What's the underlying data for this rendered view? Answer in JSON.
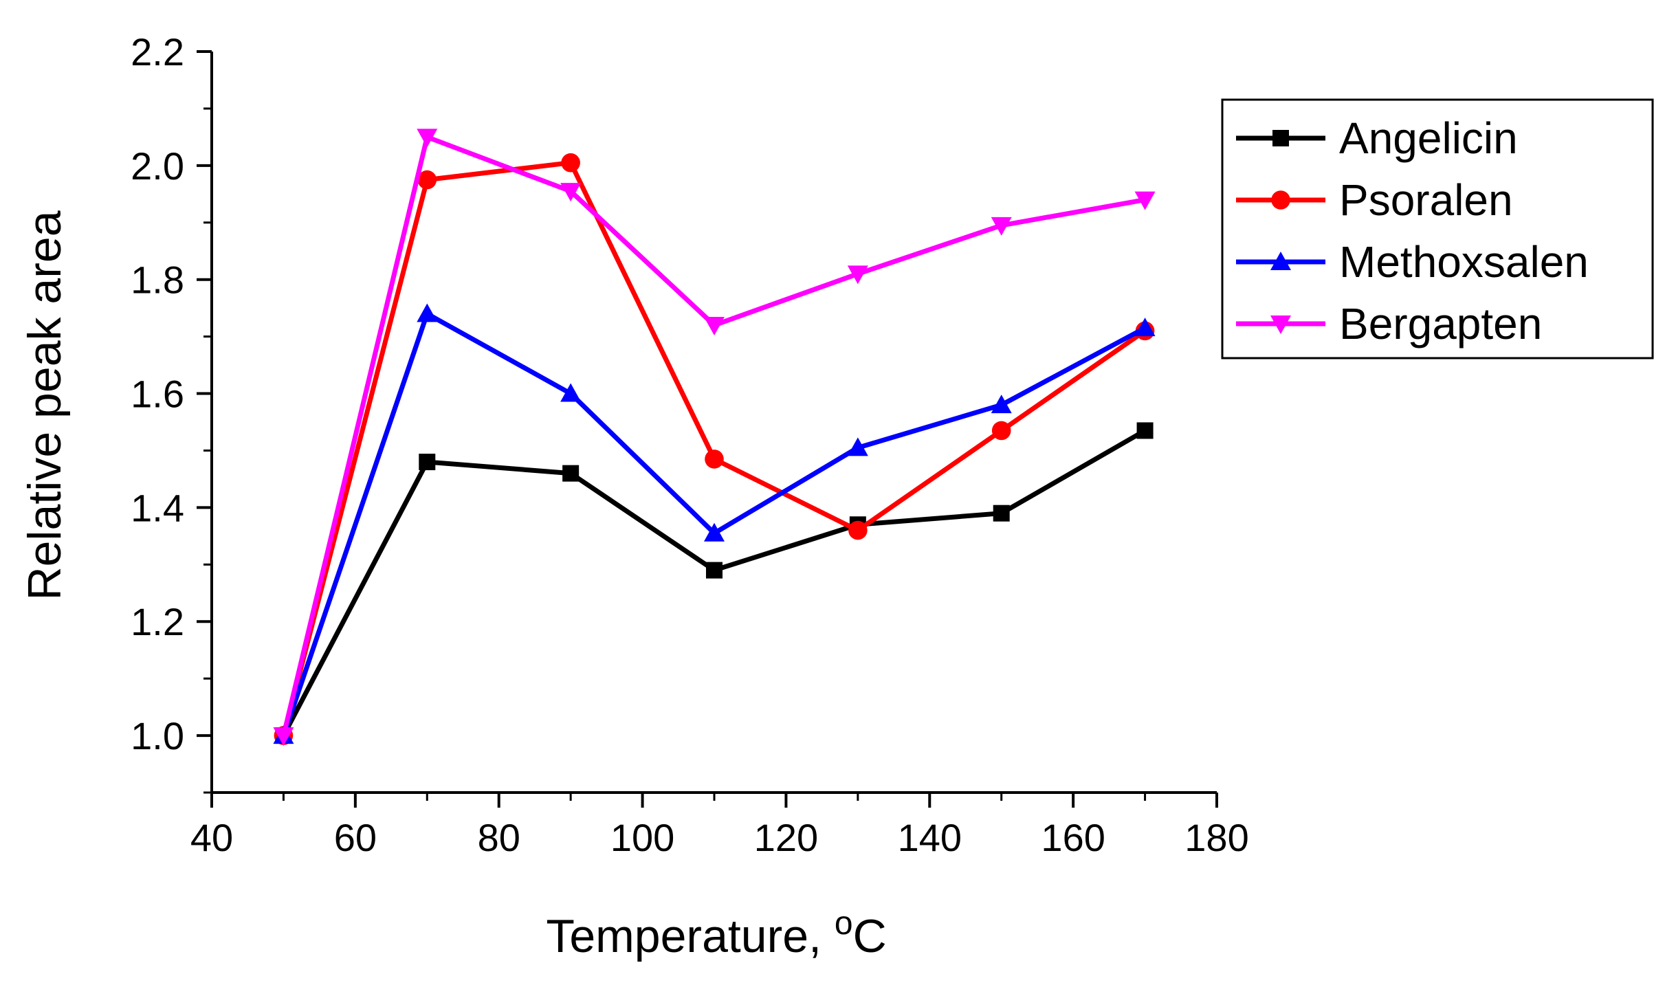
{
  "chart_data": {
    "type": "line",
    "title": "",
    "xlabel": "Temperature, ",
    "xlabel_superscript": "o",
    "xlabel_unit": "C",
    "ylabel": "Relative peak area",
    "xlim": [
      40,
      180
    ],
    "ylim": [
      0.9,
      2.2
    ],
    "x_ticks": [
      40,
      60,
      80,
      100,
      120,
      140,
      160,
      180
    ],
    "x_tick_labels": [
      "40",
      "60",
      "80",
      "100",
      "120",
      "140",
      "160",
      "180"
    ],
    "y_ticks": [
      1.0,
      1.2,
      1.4,
      1.6,
      1.8,
      2.0,
      2.2
    ],
    "y_tick_labels": [
      "1.0",
      "1.2",
      "1.4",
      "1.6",
      "1.8",
      "2.0",
      "2.2"
    ],
    "grid": false,
    "legend_position": "top-right, outside plot",
    "x": [
      50,
      70,
      90,
      110,
      130,
      150,
      170
    ],
    "series": [
      {
        "name": "Angelicin",
        "color": "#000000",
        "marker": "square",
        "values": [
          1.0,
          1.48,
          1.46,
          1.29,
          1.37,
          1.39,
          1.535
        ]
      },
      {
        "name": "Psoralen",
        "color": "#ff0000",
        "marker": "circle",
        "values": [
          1.0,
          1.975,
          2.005,
          1.485,
          1.36,
          1.535,
          1.71
        ]
      },
      {
        "name": "Methoxsalen",
        "color": "#0000ff",
        "marker": "triangle-up",
        "values": [
          1.0,
          1.74,
          1.6,
          1.355,
          1.505,
          1.58,
          1.715
        ]
      },
      {
        "name": "Bergapten",
        "color": "#ff00ff",
        "marker": "triangle-down",
        "values": [
          1.0,
          2.05,
          1.955,
          1.72,
          1.81,
          1.895,
          1.94
        ]
      }
    ]
  }
}
